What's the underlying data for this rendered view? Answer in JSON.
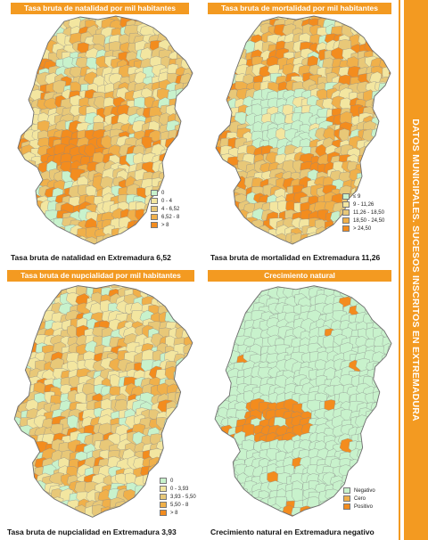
{
  "sidebar": {
    "title": "DATOS MUNICIPALES. SUCESOS INSCRITOS EN EXTREMADURA"
  },
  "colors": {
    "accent": "#f39a21",
    "pale_green": "#c8f2cc",
    "pale_yellow": "#f3e6a0",
    "tan": "#e8c878",
    "light_orange": "#f0b04a",
    "orange": "#f38c1e",
    "border": "#8a8a8a"
  },
  "panels": [
    {
      "id": "natalidad",
      "header": "Tasa bruta de natalidad por mil habitantes",
      "caption": "Tasa bruta de natalidad en Extremadura 6,52",
      "legend": [
        {
          "label": "0",
          "color": "#c8f2cc"
        },
        {
          "label": "0  -  4",
          "color": "#f3e6a0"
        },
        {
          "label": "4  -  6,52",
          "color": "#e8c878"
        },
        {
          "label": "6,52  -  8",
          "color": "#f0b04a"
        },
        {
          "label": "> 8",
          "color": "#f38c1e"
        }
      ]
    },
    {
      "id": "mortalidad",
      "header": "Tasa bruta de mortalidad por mil habitantes",
      "caption": "Tasa bruta de mortalidad en Extremadura 11,26",
      "legend": [
        {
          "label": "≤ 9",
          "color": "#c8f2cc"
        },
        {
          "label": "9  -  11,26",
          "color": "#f3e6a0"
        },
        {
          "label": "11,26  -  18,50",
          "color": "#e8c878"
        },
        {
          "label": "18,50  -  24,50",
          "color": "#f0b04a"
        },
        {
          "label": "> 24,50",
          "color": "#f38c1e"
        }
      ]
    },
    {
      "id": "nupcialidad",
      "header": "Tasa bruta de nupcialidad por mil habitantes",
      "caption": "Tasa bruta de nupcialidad en Extremadura 3,93",
      "legend": [
        {
          "label": "0",
          "color": "#c8f2cc"
        },
        {
          "label": "0  -  3,93",
          "color": "#f3e6a0"
        },
        {
          "label": "3,93  -  5,50",
          "color": "#e8c878"
        },
        {
          "label": "5,50  -  8",
          "color": "#f0b04a"
        },
        {
          "label": "> 8",
          "color": "#f38c1e"
        }
      ]
    },
    {
      "id": "crecimiento",
      "header": "Crecimiento natural",
      "caption": "Crecimiento natural en Extremadura negativo",
      "legend": [
        {
          "label": "Negativo",
          "color": "#c8f2cc"
        },
        {
          "label": "Cero",
          "color": "#f0b04a"
        },
        {
          "label": "Positivo",
          "color": "#f38c1e"
        }
      ]
    }
  ]
}
